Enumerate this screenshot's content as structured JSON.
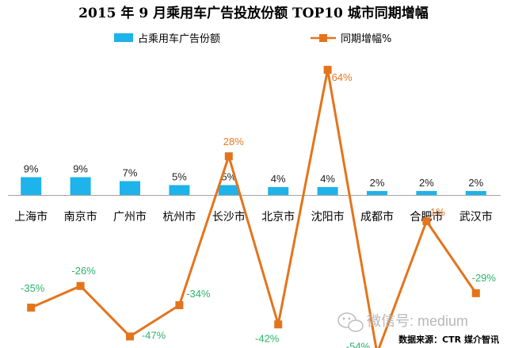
{
  "title": "2015 年 9 月乘用车广告投放份额 TOP10 城市同期增幅",
  "source": "数据来源：CTR 媒介智讯",
  "watermark": "微信号: medium",
  "colors": {
    "bar": "#1EB3EA",
    "line": "#E4741C",
    "positive_label": "#E87722",
    "negative_label": "#2DB36B"
  },
  "chart_data": {
    "type": "bar",
    "categories": [
      "上海市",
      "南京市",
      "广州市",
      "杭州市",
      "长沙市",
      "北京市",
      "沈阳市",
      "成都市",
      "合肥市",
      "武汉市"
    ],
    "series": [
      {
        "name": "占乘用车广告份额",
        "type": "bar",
        "values": [
          9,
          9,
          7,
          5,
          5,
          4,
          4,
          2,
          2,
          2
        ],
        "labels": [
          "9%",
          "9%",
          "7%",
          "5%",
          "5%",
          "4%",
          "4%",
          "2%",
          "2%",
          "2%"
        ]
      },
      {
        "name": "同期增幅%",
        "type": "line",
        "values": [
          -35,
          -26,
          -47,
          -34,
          28,
          -42,
          64,
          -54,
          1,
          -29
        ],
        "labels": [
          "-35%",
          "-26%",
          "-47%",
          "-34%",
          "28%",
          "-42%",
          "64%",
          "-54%",
          "1%",
          "-29%"
        ]
      }
    ],
    "legend": "top-center"
  }
}
